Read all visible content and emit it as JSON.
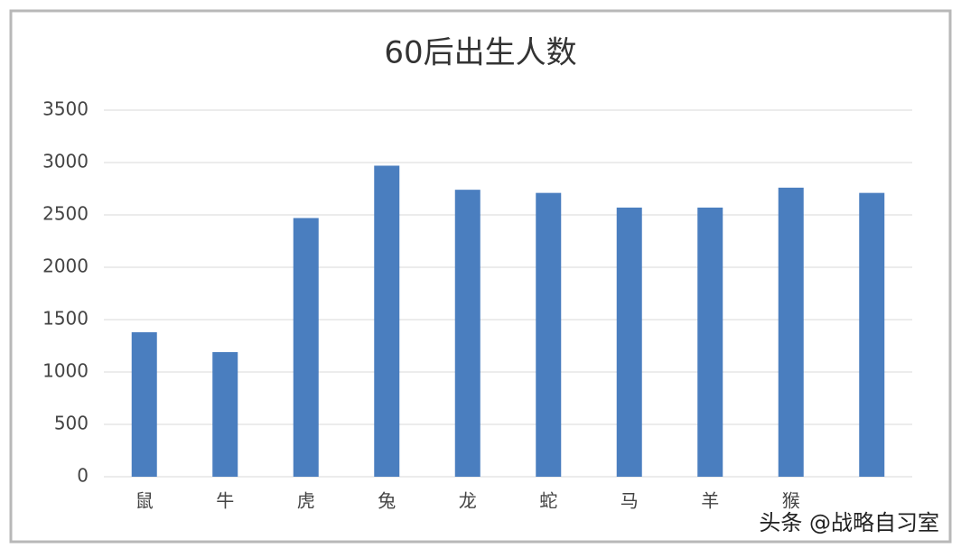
{
  "chart_data": {
    "type": "bar",
    "title": "60后出生人数",
    "categories": [
      "鼠",
      "牛",
      "虎",
      "兔",
      "龙",
      "蛇",
      "马",
      "羊",
      "猴",
      null
    ],
    "values": [
      1380,
      1190,
      2470,
      2970,
      2740,
      2710,
      2570,
      2570,
      2760,
      2710
    ],
    "color": "#4a7ebf",
    "ylim": [
      0,
      3500
    ],
    "yticks": [
      0,
      500,
      1000,
      1500,
      2000,
      2500,
      3000,
      3500
    ],
    "grid": true
  },
  "watermark": "头条 @战略自习室"
}
